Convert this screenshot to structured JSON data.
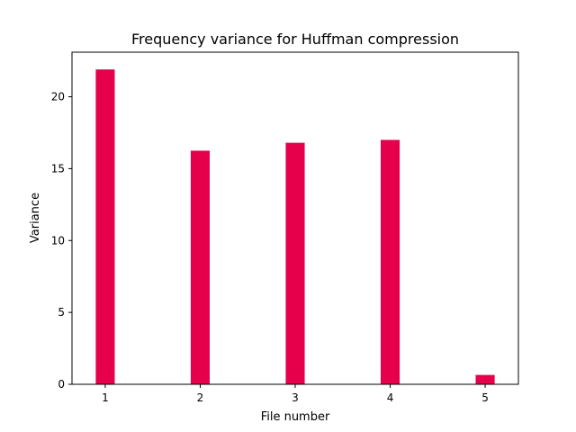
{
  "chart_data": {
    "type": "bar",
    "title": "Frequency variance for Huffman compression",
    "xlabel": "File number",
    "ylabel": "Variance",
    "categories": [
      "1",
      "2",
      "3",
      "4",
      "5"
    ],
    "x": [
      1,
      2,
      3,
      4,
      5
    ],
    "values": [
      21.9,
      16.25,
      16.8,
      17.0,
      0.65
    ],
    "xlim": [
      0.65,
      5.35
    ],
    "ylim": [
      0,
      23.1
    ],
    "yticks": [
      0,
      5,
      10,
      15,
      20
    ],
    "ytick_labels": [
      "0",
      "5",
      "10",
      "15",
      "20"
    ],
    "bar_color": "#e6004c",
    "grid": false,
    "legend": "none"
  }
}
